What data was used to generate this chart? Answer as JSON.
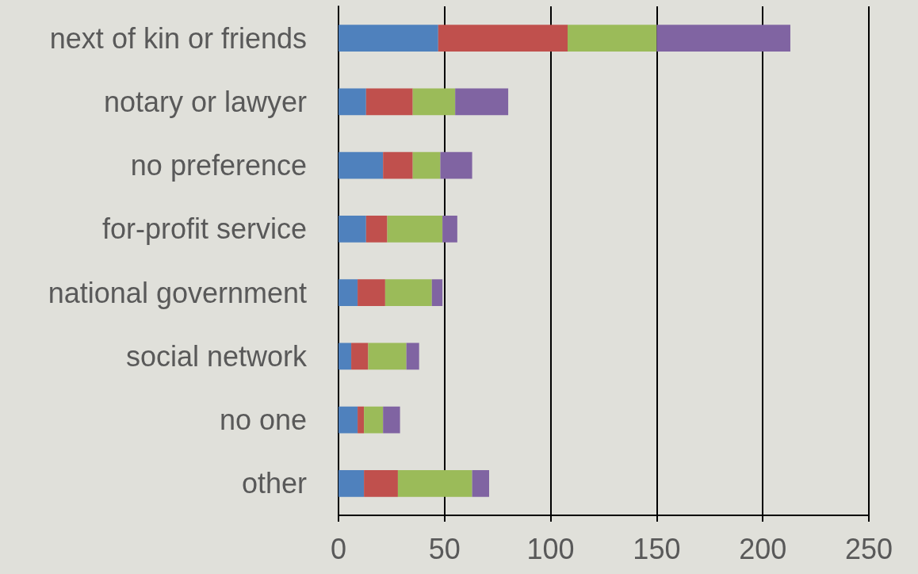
{
  "chart_data": {
    "type": "bar",
    "orientation": "horizontal",
    "stacked": true,
    "categories": [
      "next of kin or friends",
      "notary or lawyer",
      "no preference",
      "for-profit service",
      "national government",
      "social network",
      "no one",
      "other"
    ],
    "series": [
      {
        "color": "#4f81bd",
        "values": [
          47,
          13,
          21,
          13,
          9,
          6,
          9,
          12
        ]
      },
      {
        "color": "#c0504d",
        "values": [
          61,
          22,
          14,
          10,
          13,
          8,
          3,
          16
        ]
      },
      {
        "color": "#9bbb59",
        "values": [
          42,
          20,
          13,
          26,
          22,
          18,
          9,
          35
        ]
      },
      {
        "color": "#8064a2",
        "values": [
          63,
          25,
          15,
          7,
          5,
          6,
          8,
          8
        ]
      }
    ],
    "xlim": [
      0,
      250
    ],
    "xticks": [
      0,
      50,
      100,
      150,
      200,
      250
    ],
    "grid": "x"
  }
}
